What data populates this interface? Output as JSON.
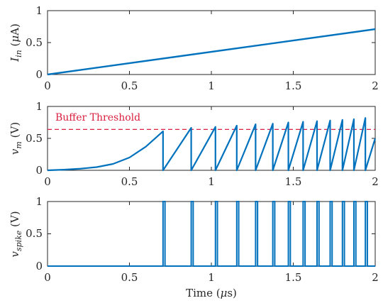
{
  "figure": {
    "colors": {
      "line": "#0072BD",
      "threshold": "#D9203F",
      "axis": "#262626"
    }
  },
  "chart_data": [
    {
      "type": "line",
      "ylabel": {
        "base": "I",
        "sub": "in",
        "unit_pre": " (",
        "unit_mu": "μ",
        "unit_post": "A)"
      },
      "xlim": [
        0,
        2
      ],
      "ylim": [
        0,
        1
      ],
      "xticks": [
        "0",
        "0.5",
        "1",
        "1.5",
        "2"
      ],
      "yticks": [
        "0",
        "0.5",
        "1"
      ],
      "grid": false,
      "series": [
        {
          "x": [
            0,
            2
          ],
          "y": [
            0,
            0.71
          ]
        }
      ]
    },
    {
      "type": "line",
      "ylabel": {
        "base": "v",
        "sub": "m",
        "unit": " (V)"
      },
      "xlim": [
        0,
        2
      ],
      "ylim": [
        0,
        1
      ],
      "xticks": [
        "0",
        "0.5",
        "1",
        "1.5",
        "2"
      ],
      "yticks": [
        "0",
        "0.5",
        "1"
      ],
      "grid": false,
      "threshold": {
        "value": 0.64,
        "label": "Buffer Threshold"
      },
      "spike_times": [
        0.705,
        0.877,
        1.025,
        1.155,
        1.27,
        1.375,
        1.47,
        1.56,
        1.645,
        1.725,
        1.8,
        1.87,
        1.94
      ],
      "peaks": [
        0.61,
        0.665,
        0.68,
        0.7,
        0.72,
        0.73,
        0.75,
        0.76,
        0.77,
        0.78,
        0.79,
        0.8,
        0.82
      ],
      "tail": {
        "x": 2.0,
        "y": 0.5
      },
      "initial_rise": [
        [
          0,
          0
        ],
        [
          0.1,
          0.01
        ],
        [
          0.2,
          0.025
        ],
        [
          0.3,
          0.05
        ],
        [
          0.4,
          0.1
        ],
        [
          0.5,
          0.2
        ],
        [
          0.6,
          0.37
        ],
        [
          0.705,
          0.61
        ]
      ]
    },
    {
      "type": "line",
      "ylabel": {
        "base": "v",
        "sub": "spike",
        "unit": " (V)"
      },
      "xlabel": {
        "pre": "Time (",
        "mu": "μ",
        "post": "s)"
      },
      "xlim": [
        0,
        2
      ],
      "ylim": [
        0,
        1
      ],
      "xticks": [
        "0",
        "0.5",
        "1",
        "1.5",
        "2"
      ],
      "yticks": [
        "0",
        "0.5",
        "1"
      ],
      "grid": false,
      "pulse_width": 0.012
    }
  ]
}
